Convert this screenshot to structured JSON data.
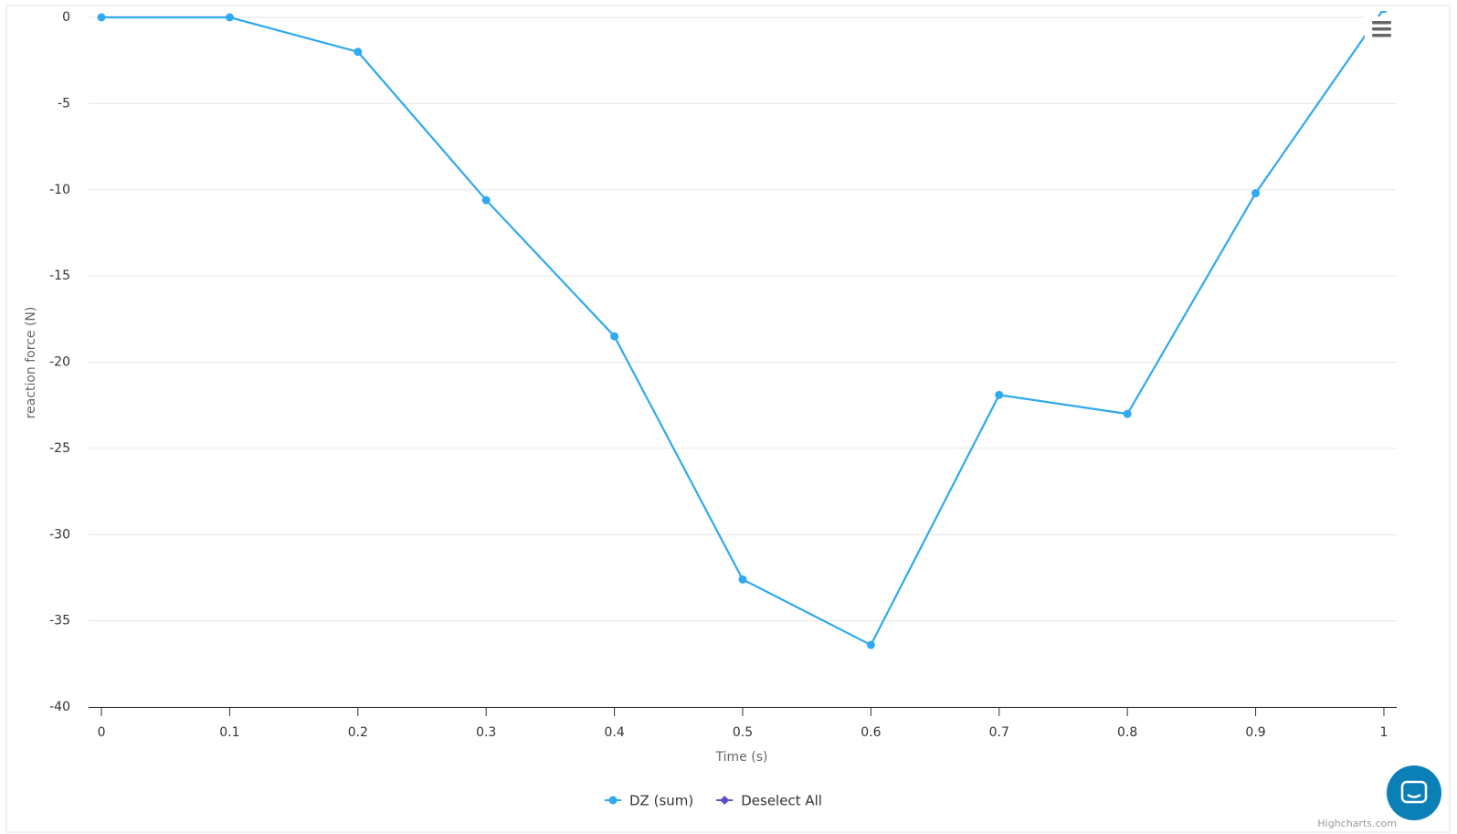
{
  "chart_data": {
    "type": "line",
    "x": [
      0,
      0.1,
      0.2,
      0.3,
      0.4,
      0.5,
      0.6,
      0.7,
      0.8,
      0.9,
      1
    ],
    "series": [
      {
        "name": "DZ (sum)",
        "color": "#2fa9f0",
        "values": [
          0,
          0,
          -2,
          -10.6,
          -18.5,
          -32.6,
          -36.4,
          -21.9,
          -23,
          -10.2,
          0.5
        ]
      },
      {
        "name": "Deselect All",
        "color": "#5a4fcf",
        "values": [
          null,
          null,
          null,
          null,
          null,
          null,
          null,
          null,
          null,
          null,
          null
        ]
      }
    ],
    "xlabel": "Time (s)",
    "ylabel": "reaction force (N)",
    "xlim": [
      -0.01,
      1.01
    ],
    "ylim": [
      -40,
      0
    ],
    "xticks": [
      0,
      0.1,
      0.2,
      0.3,
      0.4,
      0.5,
      0.6,
      0.7,
      0.8,
      0.9,
      1
    ],
    "yticks": [
      0,
      -5,
      -10,
      -15,
      -20,
      -25,
      -30,
      -35,
      -40
    ],
    "grid": true,
    "credits": "Highcharts.com"
  }
}
